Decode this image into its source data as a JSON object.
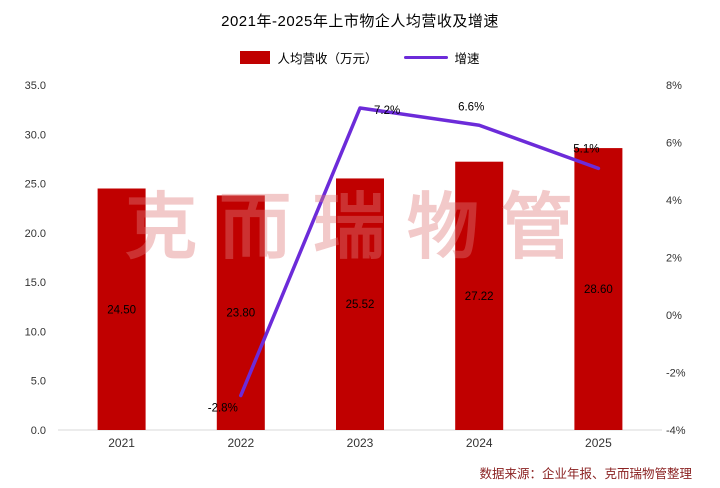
{
  "title": "2021年-2025年上市物企人均营收及增速",
  "legend": {
    "bar_label": "人均营收（万元）",
    "line_label": "增速"
  },
  "watermark": "克而瑞物管",
  "source": "数据来源：企业年报、克而瑞物管整理",
  "colors": {
    "bar": "#C00000",
    "line": "#6C2BD9",
    "bar_label_text": "#000000",
    "line_label_text": "#000000",
    "tick_text": "#333333",
    "axis_line": "#D9D9D9",
    "source_text": "#8B2222",
    "watermark": "#E07A7A"
  },
  "chart_data": {
    "type": "combo",
    "categories": [
      "2021",
      "2022",
      "2023",
      "2024",
      "2025"
    ],
    "series": [
      {
        "name": "人均营收（万元）",
        "type": "bar",
        "axis": "left",
        "values": [
          24.5,
          23.8,
          25.52,
          27.22,
          28.6
        ],
        "labels": [
          "24.50",
          "23.80",
          "25.52",
          "27.22",
          "28.60"
        ]
      },
      {
        "name": "增速",
        "type": "line",
        "axis": "right",
        "values": [
          null,
          -2.8,
          7.2,
          6.6,
          5.1
        ],
        "labels": [
          "",
          "-2.8%",
          "7.2%",
          "6.6%",
          "5.1%"
        ]
      }
    ],
    "left_axis": {
      "min": 0,
      "max": 35,
      "ticks": [
        "0.0",
        "5.0",
        "10.0",
        "15.0",
        "20.0",
        "25.0",
        "30.0",
        "35.0"
      ]
    },
    "right_axis": {
      "min": -4,
      "max": 8,
      "ticks": [
        "-4%",
        "-2%",
        "0%",
        "2%",
        "4%",
        "6%",
        "8%"
      ]
    },
    "grid": false,
    "legend_position": "top",
    "title": "2021年-2025年上市物企人均营收及增速"
  }
}
